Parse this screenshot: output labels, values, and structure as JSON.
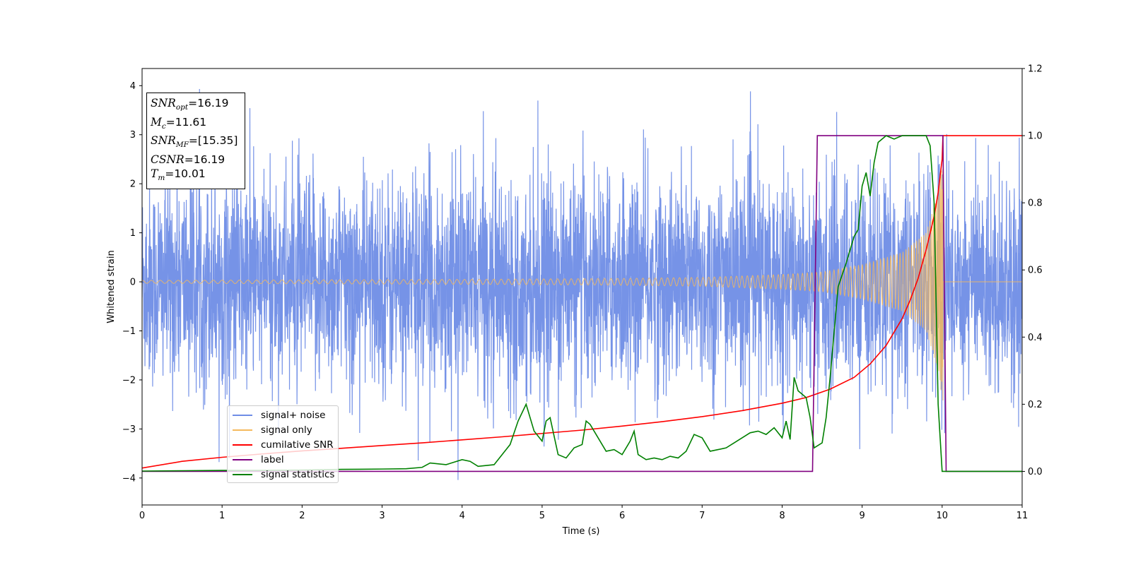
{
  "chart_data": {
    "type": "line",
    "xlabel": "Time (s)",
    "ylabel": "Whitened strain",
    "xlim": [
      0,
      11
    ],
    "ylim": [
      -4.55,
      4.35
    ],
    "y2lim": [
      -0.1,
      1.2
    ],
    "x_ticks": [
      "0",
      "1",
      "2",
      "3",
      "4",
      "5",
      "6",
      "7",
      "8",
      "9",
      "10",
      "11"
    ],
    "y_ticks": [
      "4",
      "3",
      "2",
      "1",
      "0",
      "−1",
      "−2",
      "−3",
      "−4"
    ],
    "y2_ticks": [
      "1.2",
      "1.0",
      "0.8",
      "0.6",
      "0.4",
      "0.2",
      "0.0"
    ],
    "grid": false,
    "legend_position": "lower-left",
    "annotation": {
      "snr_opt": "16.19",
      "mc": "11.61",
      "snr_mf": "[15.35]",
      "csnr": "16.19",
      "tm": "10.01"
    },
    "series": [
      {
        "name": "signal+ noise",
        "color": "#6f8de6",
        "axis": "left",
        "description": "white noise, std approx 1.1, spanning 0-11 s, with chirp signal added"
      },
      {
        "name": "signal only",
        "color": "#f5b95d",
        "axis": "left",
        "amplitude_envelope": [
          [
            0,
            0.03
          ],
          [
            2,
            0.04
          ],
          [
            4,
            0.05
          ],
          [
            6,
            0.07
          ],
          [
            7,
            0.09
          ],
          [
            8,
            0.15
          ],
          [
            8.5,
            0.2
          ],
          [
            9,
            0.35
          ],
          [
            9.5,
            0.6
          ],
          [
            9.8,
            1.0
          ],
          [
            9.95,
            1.8
          ],
          [
            10.01,
            2.5
          ]
        ],
        "merger_time": 10.01
      },
      {
        "name": "cumilative SNR",
        "color": "#ff0000",
        "axis": "right",
        "x": [
          0,
          0.5,
          1,
          1.5,
          2,
          2.5,
          3,
          3.5,
          4,
          4.5,
          5,
          5.5,
          6,
          6.5,
          7,
          7.5,
          8,
          8.3,
          8.6,
          8.9,
          9.1,
          9.3,
          9.5,
          9.6,
          9.7,
          9.8,
          9.9,
          9.95,
          10.0,
          10.01,
          11
        ],
        "y": [
          0.01,
          0.03,
          0.042,
          0.052,
          0.061,
          0.069,
          0.077,
          0.085,
          0.094,
          0.103,
          0.113,
          0.123,
          0.135,
          0.148,
          0.163,
          0.181,
          0.203,
          0.22,
          0.245,
          0.28,
          0.32,
          0.375,
          0.455,
          0.51,
          0.575,
          0.66,
          0.76,
          0.83,
          0.93,
          1.0,
          1.0
        ]
      },
      {
        "name": "label",
        "color": "#800080",
        "axis": "right",
        "x": [
          0,
          8.38,
          8.44,
          10.01,
          10.05,
          11
        ],
        "y": [
          0,
          0,
          1,
          1,
          0,
          0
        ]
      },
      {
        "name": "signal statistics",
        "color": "#008000",
        "axis": "right",
        "x": [
          0,
          0.5,
          1,
          1.5,
          2,
          2.5,
          3,
          3.3,
          3.5,
          3.6,
          3.8,
          4,
          4.1,
          4.2,
          4.4,
          4.6,
          4.7,
          4.8,
          4.9,
          5,
          5.05,
          5.1,
          5.2,
          5.3,
          5.4,
          5.5,
          5.55,
          5.6,
          5.7,
          5.8,
          5.9,
          6,
          6.1,
          6.15,
          6.2,
          6.3,
          6.4,
          6.5,
          6.6,
          6.7,
          6.8,
          6.9,
          7,
          7.1,
          7.2,
          7.3,
          7.4,
          7.5,
          7.6,
          7.7,
          7.8,
          7.9,
          8,
          8.05,
          8.1,
          8.15,
          8.2,
          8.3,
          8.35,
          8.4,
          8.5,
          8.55,
          8.6,
          8.7,
          8.8,
          8.9,
          8.95,
          9,
          9.05,
          9.1,
          9.15,
          9.2,
          9.3,
          9.4,
          9.5,
          9.7,
          9.8,
          9.85,
          9.9,
          9.95,
          10,
          10.05,
          11
        ],
        "y": [
          0.001,
          0.002,
          0.003,
          0.003,
          0.004,
          0.006,
          0.007,
          0.008,
          0.012,
          0.025,
          0.02,
          0.035,
          0.03,
          0.015,
          0.02,
          0.08,
          0.15,
          0.2,
          0.12,
          0.09,
          0.15,
          0.16,
          0.05,
          0.04,
          0.07,
          0.08,
          0.15,
          0.14,
          0.1,
          0.06,
          0.065,
          0.05,
          0.09,
          0.12,
          0.05,
          0.035,
          0.04,
          0.035,
          0.045,
          0.04,
          0.06,
          0.11,
          0.1,
          0.06,
          0.065,
          0.07,
          0.085,
          0.1,
          0.115,
          0.12,
          0.11,
          0.13,
          0.1,
          0.15,
          0.095,
          0.28,
          0.24,
          0.22,
          0.16,
          0.07,
          0.085,
          0.16,
          0.28,
          0.55,
          0.62,
          0.7,
          0.72,
          0.85,
          0.89,
          0.82,
          0.92,
          0.98,
          1.0,
          0.99,
          1.0,
          1.0,
          1.0,
          0.97,
          0.8,
          0.2,
          0.0,
          0.0,
          0.0
        ]
      }
    ]
  }
}
